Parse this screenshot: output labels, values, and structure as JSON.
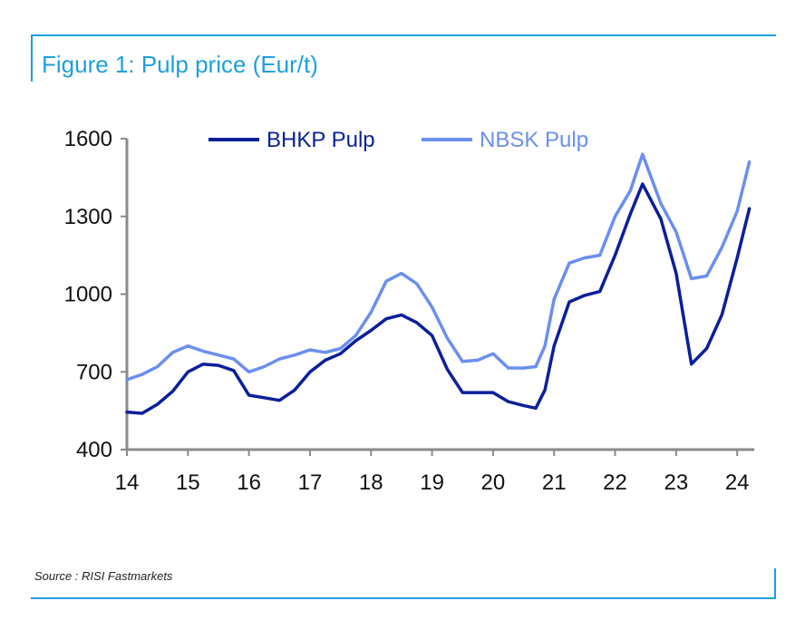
{
  "figure": {
    "title": "Figure 1: Pulp price (Eur/t)",
    "source": "Source : RISI Fastmarkets",
    "frame_color": "#1e9fe0"
  },
  "chart_data": {
    "type": "line",
    "title": "Figure 1: Pulp price (Eur/t)",
    "xlabel": "",
    "ylabel": "",
    "ylim": [
      400,
      1600
    ],
    "xlim": [
      2014,
      2024.25
    ],
    "y_ticks": [
      400,
      700,
      1000,
      1300,
      1600
    ],
    "x_ticks": [
      "14",
      "15",
      "16",
      "17",
      "18",
      "19",
      "20",
      "21",
      "22",
      "23",
      "24"
    ],
    "grid": false,
    "legend": {
      "placement": "top"
    },
    "series": [
      {
        "name": "BHKP Pulp",
        "color": "#0a1f9a",
        "x": [
          2014.0,
          2014.25,
          2014.5,
          2014.75,
          2015.0,
          2015.25,
          2015.5,
          2015.75,
          2016.0,
          2016.25,
          2016.5,
          2016.75,
          2017.0,
          2017.25,
          2017.5,
          2017.75,
          2018.0,
          2018.25,
          2018.5,
          2018.75,
          2019.0,
          2019.25,
          2019.5,
          2019.75,
          2020.0,
          2020.25,
          2020.5,
          2020.7,
          2020.85,
          2021.0,
          2021.25,
          2021.5,
          2021.75,
          2022.0,
          2022.25,
          2022.45,
          2022.75,
          2023.0,
          2023.25,
          2023.5,
          2023.75,
          2024.0,
          2024.2
        ],
        "values": [
          545,
          540,
          575,
          625,
          700,
          730,
          725,
          705,
          610,
          600,
          590,
          630,
          700,
          745,
          770,
          820,
          860,
          905,
          920,
          890,
          840,
          710,
          620,
          620,
          620,
          585,
          570,
          560,
          630,
          800,
          970,
          995,
          1010,
          1150,
          1310,
          1425,
          1290,
          1080,
          730,
          790,
          920,
          1140,
          1330
        ]
      },
      {
        "name": "NBSK Pulp",
        "color": "#6b8ff0",
        "x": [
          2014.0,
          2014.25,
          2014.5,
          2014.75,
          2015.0,
          2015.25,
          2015.5,
          2015.75,
          2016.0,
          2016.25,
          2016.5,
          2016.75,
          2017.0,
          2017.25,
          2017.5,
          2017.75,
          2018.0,
          2018.25,
          2018.5,
          2018.75,
          2019.0,
          2019.25,
          2019.5,
          2019.75,
          2020.0,
          2020.25,
          2020.5,
          2020.7,
          2020.85,
          2021.0,
          2021.25,
          2021.5,
          2021.75,
          2022.0,
          2022.25,
          2022.45,
          2022.75,
          2023.0,
          2023.25,
          2023.5,
          2023.75,
          2024.0,
          2024.2
        ],
        "values": [
          670,
          690,
          720,
          775,
          800,
          780,
          765,
          750,
          700,
          720,
          750,
          765,
          785,
          775,
          790,
          840,
          930,
          1050,
          1080,
          1040,
          950,
          830,
          740,
          745,
          770,
          715,
          715,
          720,
          800,
          980,
          1120,
          1140,
          1150,
          1300,
          1400,
          1540,
          1350,
          1240,
          1060,
          1070,
          1180,
          1320,
          1510
        ]
      }
    ]
  }
}
